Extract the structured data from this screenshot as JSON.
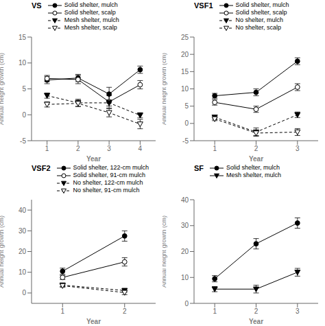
{
  "chart_data": [
    {
      "type": "line",
      "title": "VS",
      "xlabel": "Year",
      "ylabel": "Annual height growth (cm)",
      "x": [
        1,
        2,
        3,
        4
      ],
      "xlim": [
        0.5,
        4.5
      ],
      "xticks": [
        1,
        2,
        3,
        4
      ],
      "ylim": [
        -5,
        15
      ],
      "yticks": [
        -5,
        0,
        5,
        10,
        15
      ],
      "grid": false,
      "legend": "top",
      "series": [
        {
          "name": "Solid shelter, mulch",
          "values": [
            6.7,
            7.1,
            4.0,
            8.7
          ],
          "yerr": [
            0.7,
            0.7,
            1.3,
            0.7
          ],
          "color": "#000000",
          "marker": "filled_circle",
          "line_style": "solid"
        },
        {
          "name": "Solid shelter, scalp",
          "values": [
            7.0,
            6.8,
            2.5,
            5.8
          ],
          "yerr": [
            0.6,
            0.8,
            1.2,
            0.8
          ],
          "color": "#000000",
          "marker": "open_circle",
          "line_style": "solid"
        },
        {
          "name": "Mesh shelter, mulch",
          "values": [
            3.7,
            2.3,
            2.3,
            -0.1
          ],
          "yerr": [
            0.5,
            0.7,
            0.6,
            0.5
          ],
          "color": "#000000",
          "marker": "filled_triangle_down",
          "line_style": "dashed"
        },
        {
          "name": "Mesh shelter, scalp",
          "values": [
            2.0,
            2.2,
            0.4,
            -1.8
          ],
          "yerr": [
            0.5,
            0.6,
            0.8,
            0.9
          ],
          "color": "#000000",
          "marker": "open_triangle_down",
          "line_style": "dashed"
        }
      ]
    },
    {
      "type": "line",
      "title": "VSF1",
      "xlabel": "Year",
      "ylabel": "Annual height growth (cm)",
      "x": [
        1,
        2,
        3
      ],
      "xlim": [
        0.5,
        3.5
      ],
      "xticks": [
        1,
        2,
        3
      ],
      "ylim": [
        -5,
        25
      ],
      "yticks": [
        -5,
        0,
        5,
        10,
        15,
        20,
        25
      ],
      "grid": false,
      "legend": "top",
      "series": [
        {
          "name": "Solid shelter, mulch",
          "values": [
            8.0,
            9.0,
            18.0
          ],
          "yerr": [
            0.7,
            1.0,
            1.0
          ],
          "color": "#000000",
          "marker": "filled_circle",
          "line_style": "solid"
        },
        {
          "name": "Solid shelter, scalp",
          "values": [
            6.1,
            4.1,
            10.5
          ],
          "yerr": [
            0.8,
            0.9,
            1.0
          ],
          "color": "#000000",
          "marker": "open_circle",
          "line_style": "solid"
        },
        {
          "name": "No shelter, mulch",
          "values": [
            1.8,
            -2.5,
            2.5
          ],
          "yerr": [
            0.6,
            1.2,
            0.8
          ],
          "color": "#000000",
          "marker": "filled_triangle_down",
          "line_style": "dashed"
        },
        {
          "name": "No shelter, scalp",
          "values": [
            1.3,
            -2.8,
            -2.5
          ],
          "yerr": [
            0.5,
            0.7,
            1.0
          ],
          "color": "#000000",
          "marker": "open_triangle_down",
          "line_style": "dashed"
        }
      ]
    },
    {
      "type": "line",
      "title": "VSF2",
      "xlabel": "Year",
      "ylabel": "Annual height growth (cm)",
      "x": [
        1,
        2
      ],
      "xlim": [
        0.5,
        2.5
      ],
      "xticks": [
        1,
        2
      ],
      "ylim": [
        -5,
        45
      ],
      "yticks": [
        0,
        10,
        20,
        30,
        40
      ],
      "grid": false,
      "legend": "top",
      "series": [
        {
          "name": "Solid shelter, 122-cm mulch",
          "values": [
            10.5,
            27.5
          ],
          "yerr": [
            1.5,
            2.5
          ],
          "color": "#000000",
          "marker": "filled_circle",
          "line_style": "solid"
        },
        {
          "name": "Solid shelter, 91-cm mulch",
          "values": [
            7.5,
            15.0
          ],
          "yerr": [
            1.0,
            2.0
          ],
          "color": "#000000",
          "marker": "open_circle",
          "line_style": "solid"
        },
        {
          "name": "No shelter, 122-cm mulch",
          "values": [
            3.8,
            1.2
          ],
          "yerr": [
            0.7,
            0.8
          ],
          "color": "#000000",
          "marker": "filled_triangle_down",
          "line_style": "dashed"
        },
        {
          "name": "No shelter, 91-cm mulch",
          "values": [
            3.5,
            0.2
          ],
          "yerr": [
            0.7,
            1.0
          ],
          "color": "#000000",
          "marker": "open_triangle_down",
          "line_style": "dashed"
        }
      ]
    },
    {
      "type": "line",
      "title": "SF",
      "xlabel": "Year",
      "ylabel": "Annual height growth (cm)",
      "x": [
        1,
        2,
        3
      ],
      "xlim": [
        0.5,
        3.5
      ],
      "xticks": [
        1,
        2,
        3
      ],
      "ylim": [
        0,
        40
      ],
      "yticks": [
        0,
        10,
        20,
        30,
        40
      ],
      "grid": false,
      "legend": "top",
      "series": [
        {
          "name": "Solid shelter, mulch",
          "values": [
            9.5,
            23.0,
            31.0
          ],
          "yerr": [
            1.2,
            2.0,
            2.0
          ],
          "color": "#000000",
          "marker": "filled_circle",
          "line_style": "solid"
        },
        {
          "name": "Mesh shelter, mulch",
          "values": [
            5.5,
            5.5,
            12.0
          ],
          "yerr": [
            1.0,
            1.5,
            1.5
          ],
          "color": "#000000",
          "marker": "filled_triangle_down",
          "line_style": "solid"
        }
      ]
    }
  ]
}
